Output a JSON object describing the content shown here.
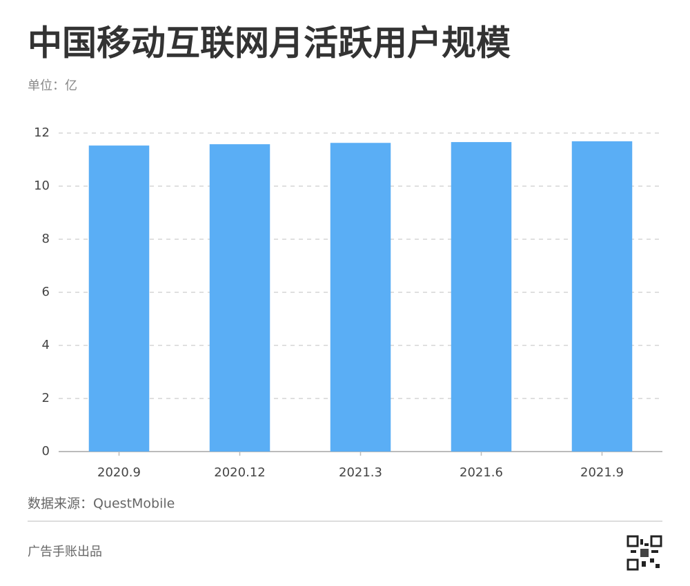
{
  "chart_data": {
    "type": "bar",
    "title": "中国移动互联网月活跃用户规模",
    "subtitle": "单位：亿",
    "categories": [
      "2020.9",
      "2020.12",
      "2021.3",
      "2021.6",
      "2021.9"
    ],
    "values": [
      11.53,
      11.58,
      11.63,
      11.66,
      11.69
    ],
    "color": "#5aaef5",
    "ylim": [
      0,
      12
    ],
    "yticks": [
      0,
      2,
      4,
      6,
      8,
      10,
      12
    ],
    "grid": true,
    "source": "数据来源：QuestMobile"
  },
  "footer": {
    "text": "广告手账出品"
  }
}
